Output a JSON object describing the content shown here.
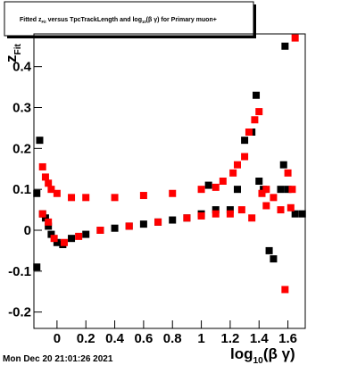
{
  "chart_data": {
    "type": "scatter",
    "title": [
      "Fitted  z",
      "Fit",
      " versus TpcTrackLength and log",
      "10",
      "(β γ) for Primary muon+"
    ],
    "y_label": [
      "z",
      "Fit"
    ],
    "x_label": [
      "log",
      "10",
      "(β γ)"
    ],
    "footer": "Mon Dec 20 21:01:26 2021",
    "xlim": [
      -0.16,
      1.72
    ],
    "ylim": [
      -0.24,
      0.48
    ],
    "xticks": [
      {
        "value": 0,
        "label": "0"
      },
      {
        "value": 0.2,
        "label": "0.2"
      },
      {
        "value": 0.4,
        "label": "0.4"
      },
      {
        "value": 0.6,
        "label": "0.6"
      },
      {
        "value": 0.8,
        "label": "0.8"
      },
      {
        "value": 1,
        "label": "1"
      },
      {
        "value": 1.2,
        "label": "1.2"
      },
      {
        "value": 1.4,
        "label": "1.4"
      },
      {
        "value": 1.6,
        "label": "1.6"
      }
    ],
    "yticks": [
      -0.2,
      -0.1,
      0,
      0.1,
      0.2,
      0.3,
      0.4
    ],
    "series": [
      {
        "color": "#000000",
        "x": [
          -0.14,
          -0.14,
          -0.12,
          -0.1,
          -0.08,
          -0.06,
          -0.04,
          0,
          0.04,
          0.1,
          0.2,
          0.3,
          0.4,
          0.5,
          0.6,
          0.7,
          0.8,
          0.9,
          1.0,
          1.05,
          1.1,
          1.2,
          1.25,
          1.3,
          1.35,
          1.38,
          1.4,
          1.43,
          1.47,
          1.5,
          1.55,
          1.57,
          1.6,
          1.65,
          1.7,
          1.58
        ],
        "values": [
          -0.09,
          0.09,
          0.22,
          0.04,
          0.03,
          0.01,
          -0.01,
          -0.03,
          -0.035,
          -0.02,
          -0.01,
          0.0,
          0.005,
          0.01,
          0.015,
          0.02,
          0.025,
          0.03,
          0.04,
          0.11,
          0.05,
          0.05,
          0.1,
          0.22,
          0.24,
          0.33,
          0.12,
          0.1,
          -0.05,
          -0.07,
          0.1,
          0.16,
          0.1,
          0.04,
          0.04,
          0.45
        ]
      },
      {
        "color": "#ff0000",
        "x": [
          -0.1,
          -0.08,
          -0.06,
          -0.04,
          0,
          0.1,
          0.2,
          0.4,
          0.6,
          0.8,
          1.0,
          1.1,
          1.15,
          1.22,
          1.25,
          1.3,
          1.33,
          1.37,
          1.4,
          1.42,
          1.45,
          1.5,
          1.55,
          1.6,
          1.63,
          1.65,
          -0.1,
          -0.06,
          -0.02,
          0.05,
          0.15,
          0.3,
          0.5,
          0.7,
          0.9,
          1.0,
          1.1,
          1.2,
          1.28,
          1.35,
          1.45,
          1.58,
          1.62
        ],
        "values": [
          0.155,
          0.13,
          0.115,
          0.1,
          0.09,
          0.08,
          0.08,
          0.08,
          0.085,
          0.09,
          0.1,
          0.105,
          0.12,
          0.14,
          0.16,
          0.18,
          0.24,
          0.27,
          0.29,
          0.09,
          0.1,
          0.08,
          0.05,
          0.14,
          0.1,
          0.47,
          0.04,
          0.02,
          -0.02,
          -0.03,
          -0.015,
          0.0,
          0.01,
          0.02,
          0.03,
          0.035,
          0.04,
          0.04,
          0.05,
          0.03,
          0.06,
          -0.145,
          0.055
        ]
      }
    ]
  }
}
